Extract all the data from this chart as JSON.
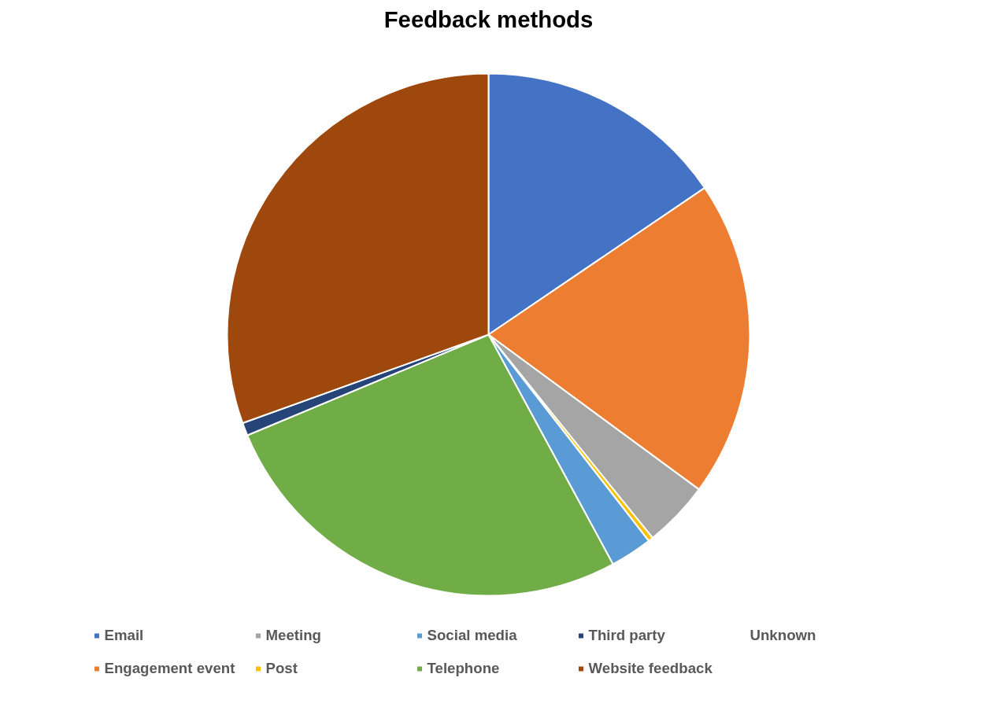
{
  "chart_data": {
    "type": "pie",
    "title": "Feedback methods",
    "categories": [
      "Email",
      "Engagement event",
      "Meeting",
      "Post",
      "Social media",
      "Telephone",
      "Third party",
      "Website feedback",
      "Unknown"
    ],
    "values": [
      15.5,
      19.6,
      4.1,
      0.3,
      2.6,
      26.6,
      0.8,
      30.5,
      0
    ],
    "colors": [
      "#4472c4",
      "#ed7d31",
      "#a5a5a5",
      "#ffc000",
      "#5b9bd5",
      "#70ad47",
      "#264478",
      "#9e480e",
      "#636363"
    ],
    "legend": "bottom"
  }
}
